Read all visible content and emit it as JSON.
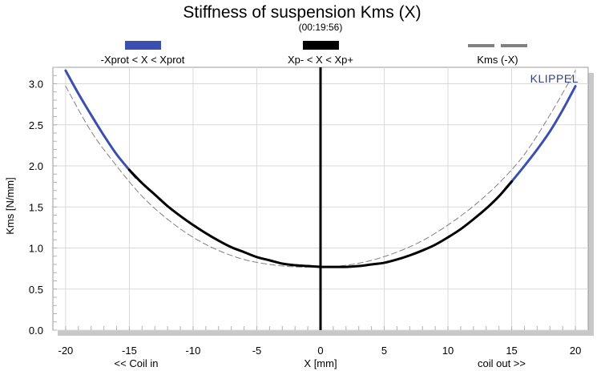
{
  "chart_data": {
    "type": "line",
    "title": "Stiffness of suspension Kms (X)",
    "subtitle": "(00:19:56)",
    "xlabel": "X [mm]",
    "ylabel": "Kms [N/mm]",
    "xlim": [
      -21,
      21
    ],
    "ylim": [
      0,
      3.2
    ],
    "xticks": [
      -20,
      -15,
      -10,
      -5,
      0,
      5,
      10,
      15,
      20
    ],
    "xtick_labels": [
      "-20",
      "-15",
      "-10",
      "-5",
      "0",
      "5",
      "10",
      "15",
      "20"
    ],
    "yticks": [
      0,
      0.5,
      1,
      1.5,
      2,
      2.5,
      3
    ],
    "ytick_labels": [
      "0.0",
      "0.5",
      "1.0",
      "1.5",
      "2.0",
      "2.5",
      "3.0"
    ],
    "grid": true,
    "x_annotations": {
      "left": "<< Coil in",
      "right": "coil out >>"
    },
    "brand": "KLIPPEL",
    "legend": [
      {
        "label": "-Xprot < X < Xprot",
        "color": "#3a4fb0",
        "style": "solid"
      },
      {
        "label": "Xp- < X < Xp+",
        "color": "#000000",
        "style": "solid"
      },
      {
        "label": "Kms (-X)",
        "color": "#808080",
        "style": "dashed"
      }
    ],
    "series": [
      {
        "name": "-Xprot < X < Xprot",
        "color": "#3a4fb0",
        "x": [
          -20,
          -19,
          -18,
          -17,
          -16,
          -15,
          -14.5,
          14.5,
          15,
          16,
          17,
          18,
          19,
          20
        ],
        "y": [
          3.16,
          2.88,
          2.62,
          2.37,
          2.14,
          1.95,
          1.86,
          1.72,
          1.81,
          2.0,
          2.2,
          2.42,
          2.68,
          2.97
        ]
      },
      {
        "name": "Xp- < X < Xp+",
        "color": "#000000",
        "x": [
          -15,
          -14,
          -13,
          -12,
          -11,
          -10,
          -9,
          -8,
          -7,
          -6,
          -5,
          -4,
          -3,
          -2,
          -1,
          0,
          1,
          2,
          3,
          4,
          5,
          6,
          7,
          8,
          9,
          10,
          11,
          12,
          13,
          14,
          15
        ],
        "y": [
          1.95,
          1.79,
          1.65,
          1.51,
          1.39,
          1.28,
          1.18,
          1.09,
          1.01,
          0.95,
          0.89,
          0.85,
          0.81,
          0.79,
          0.78,
          0.77,
          0.77,
          0.77,
          0.78,
          0.8,
          0.82,
          0.86,
          0.91,
          0.97,
          1.04,
          1.13,
          1.23,
          1.35,
          1.48,
          1.63,
          1.81
        ]
      },
      {
        "name": "Kms (-X)",
        "color": "#808080",
        "style": "dashed",
        "x": [
          -20,
          -18,
          -16,
          -14,
          -12,
          -10,
          -8,
          -6,
          -4,
          -2,
          0,
          2,
          4,
          6,
          8,
          10,
          12,
          14,
          16,
          18,
          20
        ],
        "y": [
          2.97,
          2.42,
          2.0,
          1.63,
          1.35,
          1.13,
          0.97,
          0.86,
          0.8,
          0.77,
          0.77,
          0.79,
          0.85,
          0.95,
          1.09,
          1.28,
          1.51,
          1.79,
          2.14,
          2.62,
          3.16
        ]
      }
    ],
    "markers": [
      {
        "x": 0,
        "color": "#000000",
        "label": ""
      }
    ]
  }
}
